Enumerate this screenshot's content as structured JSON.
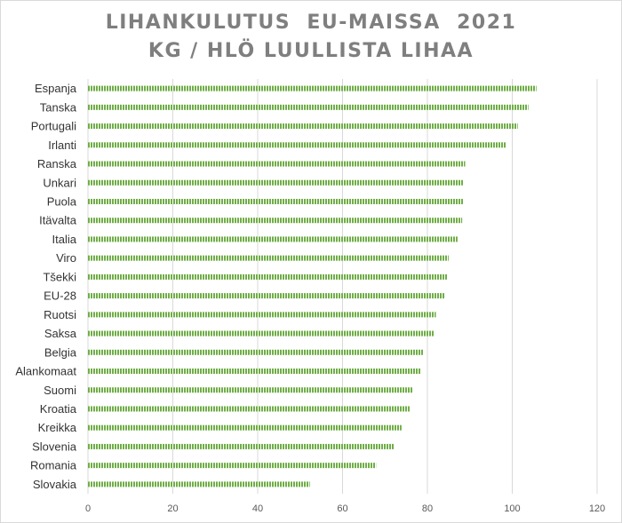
{
  "chart_data": {
    "type": "bar",
    "orientation": "horizontal",
    "title_line1": "LIHANKULUTUS  EU-MAISSA  2021",
    "title_line2": "KG / HLÖ LUULLISTA LIHAA",
    "categories": [
      "Espanja",
      "Tanska",
      "Portugali",
      "Irlanti",
      "Ranska",
      "Unkari",
      "Puola",
      "Itävalta",
      "Italia",
      "Viro",
      "Tšekki",
      "EU-28",
      "Ruotsi",
      "Saksa",
      "Belgia",
      "Alankomaat",
      "Suomi",
      "Kroatia",
      "Kreikka",
      "Slovenia",
      "Romania",
      "Slovakia"
    ],
    "values": [
      105.7,
      103.8,
      101.3,
      98.6,
      88.9,
      88.5,
      88.4,
      88.2,
      87.1,
      85.0,
      84.7,
      84.1,
      82.0,
      81.7,
      79.0,
      78.5,
      76.6,
      75.8,
      73.9,
      72.1,
      67.9,
      52.3
    ],
    "xlim": [
      0,
      120
    ],
    "xticks": [
      0,
      20,
      40,
      60,
      80,
      100,
      120
    ],
    "grid": "vertical",
    "legend": "none",
    "bar_color": "#70ad47"
  }
}
